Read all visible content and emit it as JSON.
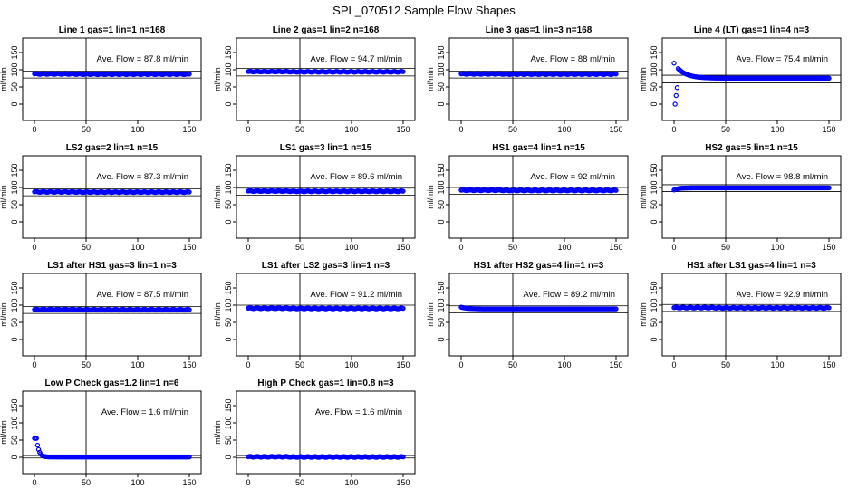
{
  "main_title": "SPL_070512  Sample Flow Shapes",
  "colors": {
    "points": "#0000ff",
    "axes": "#000000"
  },
  "chart_data": [
    {
      "type": "scatter",
      "title": "Line 1 gas=1 lin=1 n=168",
      "annotation": "Ave. Flow =  87.8  ml/min",
      "ylabel": "ml/min",
      "xlim": [
        0,
        150
      ],
      "ylim": [
        0,
        150
      ],
      "xticks": [
        "0",
        "50",
        "100",
        "150"
      ],
      "yticks": [
        "0",
        "50",
        "100",
        "150"
      ],
      "vline": 50,
      "hlines": [
        76,
        96
      ],
      "ave": 87.8,
      "shape": "flat"
    },
    {
      "type": "scatter",
      "title": "Line 2 gas=1 lin=2 n=168",
      "annotation": "Ave. Flow =  94.7  ml/min",
      "ylabel": "ml/min",
      "xlim": [
        0,
        150
      ],
      "ylim": [
        0,
        150
      ],
      "xticks": [
        "0",
        "50",
        "100",
        "150"
      ],
      "yticks": [
        "0",
        "50",
        "100",
        "150"
      ],
      "vline": 50,
      "hlines": [
        82,
        104
      ],
      "ave": 94.7,
      "shape": "flat"
    },
    {
      "type": "scatter",
      "title": "Line 3 gas=1 lin=3 n=168",
      "annotation": "Ave. Flow =  88  ml/min",
      "ylabel": "ml/min",
      "xlim": [
        0,
        150
      ],
      "ylim": [
        0,
        150
      ],
      "xticks": [
        "0",
        "50",
        "100",
        "150"
      ],
      "yticks": [
        "0",
        "50",
        "100",
        "150"
      ],
      "vline": 50,
      "hlines": [
        76,
        96
      ],
      "ave": 88,
      "shape": "flat"
    },
    {
      "type": "scatter",
      "title": "Line 4 (LT) gas=1 lin=4 n=3",
      "annotation": "Ave. Flow =  75.4  ml/min",
      "ylabel": "ml/min",
      "xlim": [
        0,
        150
      ],
      "ylim": [
        0,
        150
      ],
      "xticks": [
        "0",
        "50",
        "100",
        "150"
      ],
      "yticks": [
        "0",
        "50",
        "100",
        "150"
      ],
      "vline": 50,
      "hlines": [
        62,
        84
      ],
      "ave": 75.4,
      "shape": "spike"
    },
    {
      "type": "scatter",
      "title": "LS2 gas=2 lin=1 n=15",
      "annotation": "Ave. Flow =  87.3  ml/min",
      "ylabel": "ml/min",
      "xlim": [
        0,
        150
      ],
      "ylim": [
        0,
        150
      ],
      "xticks": [
        "0",
        "50",
        "100",
        "150"
      ],
      "yticks": [
        "0",
        "50",
        "100",
        "150"
      ],
      "vline": 50,
      "hlines": [
        76,
        96
      ],
      "ave": 87.3,
      "shape": "flat"
    },
    {
      "type": "scatter",
      "title": "LS1 gas=3 lin=1 n=15",
      "annotation": "Ave. Flow =  89.6  ml/min",
      "ylabel": "ml/min",
      "xlim": [
        0,
        150
      ],
      "ylim": [
        0,
        150
      ],
      "xticks": [
        "0",
        "50",
        "100",
        "150"
      ],
      "yticks": [
        "0",
        "50",
        "100",
        "150"
      ],
      "vline": 50,
      "hlines": [
        78,
        98
      ],
      "ave": 89.6,
      "shape": "flat"
    },
    {
      "type": "scatter",
      "title": "HS1 gas=4 lin=1 n=15",
      "annotation": "Ave. Flow =  92  ml/min",
      "ylabel": "ml/min",
      "xlim": [
        0,
        150
      ],
      "ylim": [
        0,
        150
      ],
      "xticks": [
        "0",
        "50",
        "100",
        "150"
      ],
      "yticks": [
        "0",
        "50",
        "100",
        "150"
      ],
      "vline": 50,
      "hlines": [
        80,
        100
      ],
      "ave": 92,
      "shape": "flat"
    },
    {
      "type": "scatter",
      "title": "HS2 gas=5 lin=1 n=15",
      "annotation": "Ave. Flow =  98.8  ml/min",
      "ylabel": "ml/min",
      "xlim": [
        0,
        150
      ],
      "ylim": [
        0,
        150
      ],
      "xticks": [
        "0",
        "50",
        "100",
        "150"
      ],
      "yticks": [
        "0",
        "50",
        "100",
        "150"
      ],
      "vline": 50,
      "hlines": [
        88,
        108
      ],
      "ave": 98.8,
      "shape": "rise"
    },
    {
      "type": "scatter",
      "title": "LS1 after HS1 gas=3 lin=1 n=3",
      "annotation": "Ave. Flow =  87.5  ml/min",
      "ylabel": "ml/min",
      "xlim": [
        0,
        150
      ],
      "ylim": [
        0,
        150
      ],
      "xticks": [
        "0",
        "50",
        "100",
        "150"
      ],
      "yticks": [
        "0",
        "50",
        "100",
        "150"
      ],
      "vline": 50,
      "hlines": [
        76,
        96
      ],
      "ave": 87.5,
      "shape": "flat"
    },
    {
      "type": "scatter",
      "title": "LS1 after LS2 gas=3 lin=1 n=3",
      "annotation": "Ave. Flow =  91.2  ml/min",
      "ylabel": "ml/min",
      "xlim": [
        0,
        150
      ],
      "ylim": [
        0,
        150
      ],
      "xticks": [
        "0",
        "50",
        "100",
        "150"
      ],
      "yticks": [
        "0",
        "50",
        "100",
        "150"
      ],
      "vline": 50,
      "hlines": [
        80,
        100
      ],
      "ave": 91.2,
      "shape": "flat"
    },
    {
      "type": "scatter",
      "title": "HS1 after HS2 gas=4 lin=1 n=3",
      "annotation": "Ave. Flow =  89.2  ml/min",
      "ylabel": "ml/min",
      "xlim": [
        0,
        150
      ],
      "ylim": [
        0,
        150
      ],
      "xticks": [
        "0",
        "50",
        "100",
        "150"
      ],
      "yticks": [
        "0",
        "50",
        "100",
        "150"
      ],
      "vline": 50,
      "hlines": [
        78,
        98
      ],
      "ave": 89.2,
      "shape": "fall"
    },
    {
      "type": "scatter",
      "title": "HS1 after LS1 gas=4 lin=1 n=3",
      "annotation": "Ave. Flow =  92.9  ml/min",
      "ylabel": "ml/min",
      "xlim": [
        0,
        150
      ],
      "ylim": [
        0,
        150
      ],
      "xticks": [
        "0",
        "50",
        "100",
        "150"
      ],
      "yticks": [
        "0",
        "50",
        "100",
        "150"
      ],
      "vline": 50,
      "hlines": [
        82,
        102
      ],
      "ave": 92.9,
      "shape": "flat"
    },
    {
      "type": "scatter",
      "title": "Low P Check gas=1.2 lin=1 n=6",
      "annotation": "Ave. Flow =  1.6  ml/min",
      "ylabel": "ml/min",
      "xlim": [
        0,
        150
      ],
      "ylim": [
        0,
        150
      ],
      "xticks": [
        "0",
        "50",
        "100",
        "150"
      ],
      "yticks": [
        "0",
        "50",
        "100",
        "150"
      ],
      "vline": 50,
      "hlines": [
        -2,
        5
      ],
      "ave": 1.6,
      "shape": "decay"
    },
    {
      "type": "scatter",
      "title": "High P Check gas=1 lin=0.8 n=3",
      "annotation": "Ave. Flow =  1.6  ml/min",
      "ylabel": "ml/min",
      "xlim": [
        0,
        150
      ],
      "ylim": [
        0,
        150
      ],
      "xticks": [
        "0",
        "50",
        "100",
        "150"
      ],
      "yticks": [
        "0",
        "50",
        "100",
        "150"
      ],
      "vline": 50,
      "hlines": [
        -2,
        5
      ],
      "ave": 1.6,
      "shape": "flat"
    }
  ]
}
